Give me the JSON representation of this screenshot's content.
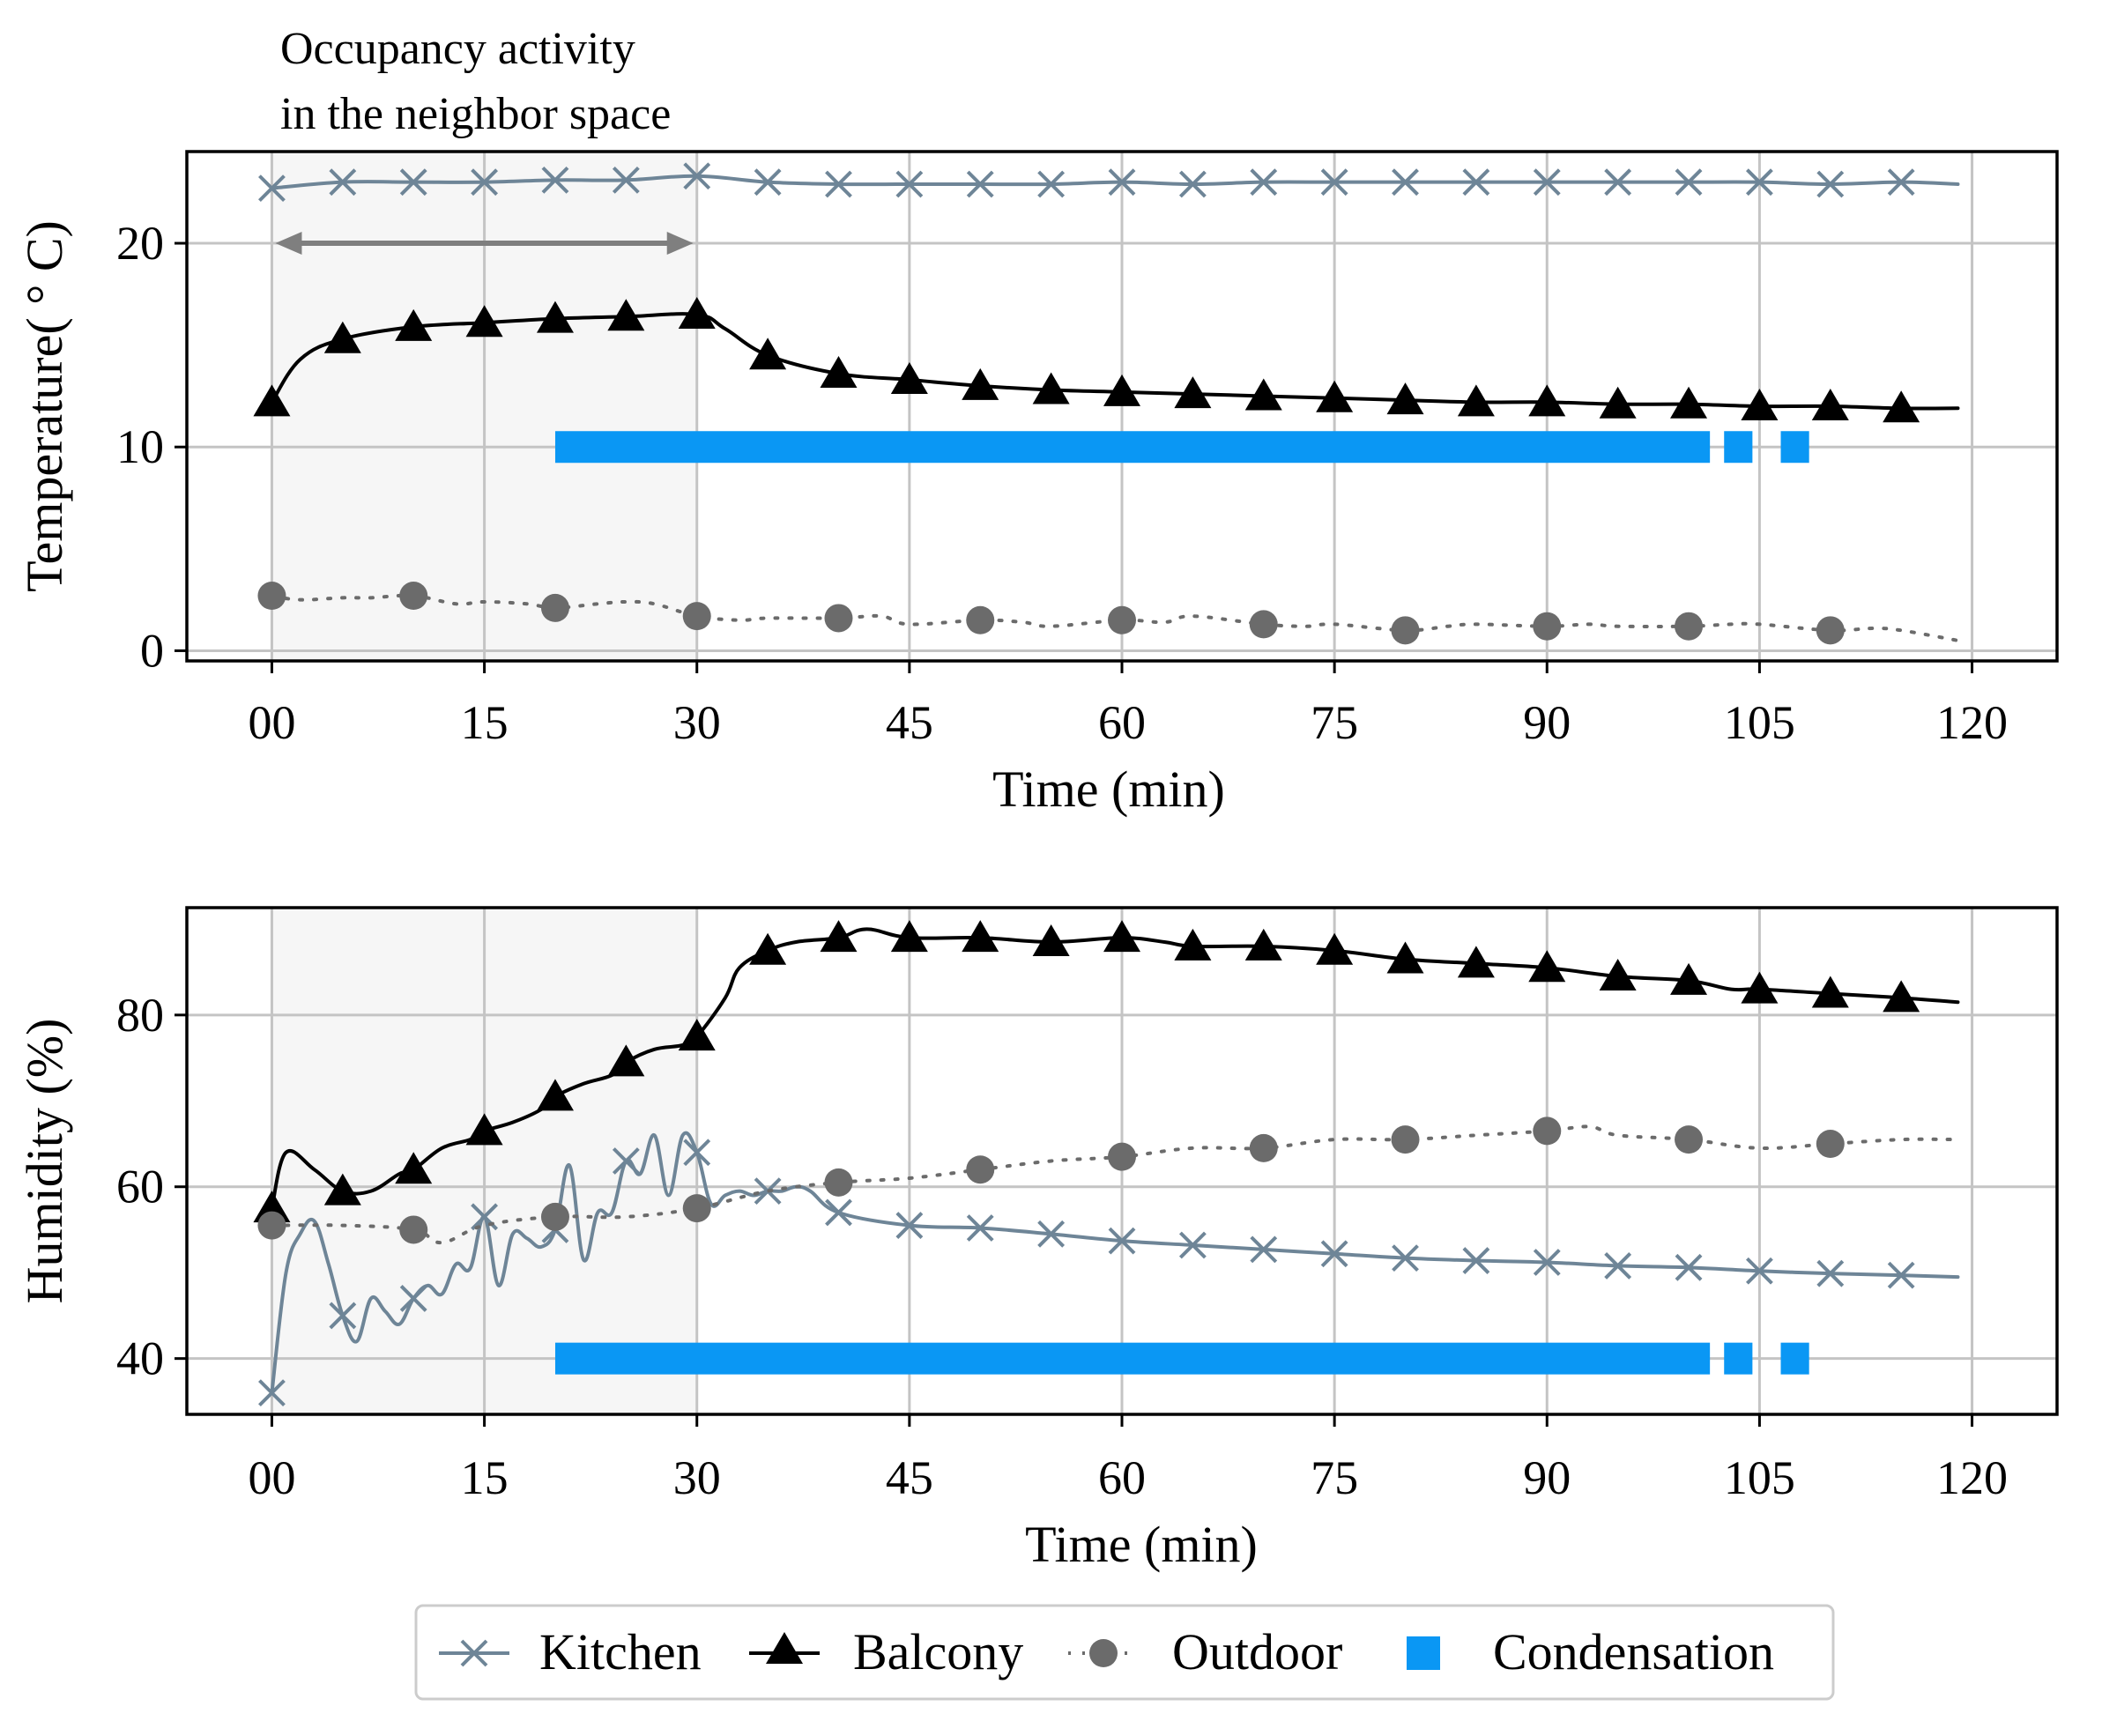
{
  "annotation": {
    "line1": "Occupancy activity",
    "line2": "in the neighbor space"
  },
  "legend": {
    "kitchen": "Kitchen",
    "balcony": "Balcony",
    "outdoor": "Outdoor",
    "condensation": "Condensation"
  },
  "colors": {
    "kitchen": "#6e8597",
    "balcony": "#000000",
    "outdoor": "#6b6b6b",
    "condensation": "#0a97f4",
    "occupancy_shade": "#f6f6f6",
    "grid": "#c4c4c4",
    "arrow": "#7f7f7f"
  },
  "chart_data": [
    {
      "type": "line",
      "xlabel": "Time (min)",
      "ylabel": "Temperature( ° C)",
      "xlim": [
        -6,
        126
      ],
      "ylim": [
        -0.5,
        24.5
      ],
      "xticks": [
        0,
        15,
        30,
        45,
        60,
        75,
        90,
        105,
        120
      ],
      "xtick_labels": [
        "00",
        "15",
        "30",
        "45",
        "60",
        "75",
        "90",
        "105",
        "120"
      ],
      "yticks": [
        0,
        10,
        20
      ],
      "ytick_labels": [
        "0",
        "10",
        "20"
      ],
      "grid": true,
      "occupancy_period": [
        0,
        30
      ],
      "condensation": {
        "y": 10,
        "segments": [
          [
            20,
            101.5
          ],
          [
            102.5,
            104.5
          ],
          [
            106.5,
            108.5
          ]
        ]
      },
      "series": [
        {
          "name": "Kitchen",
          "marker": "x",
          "x": [
            0,
            5,
            10,
            15,
            20,
            25,
            30,
            35,
            40,
            45,
            50,
            55,
            60,
            65,
            70,
            75,
            80,
            85,
            90,
            95,
            100,
            105,
            110,
            115,
            119
          ],
          "y": [
            22.7,
            23.0,
            23.0,
            23.0,
            23.1,
            23.1,
            23.3,
            23.0,
            22.9,
            22.9,
            22.9,
            22.9,
            23.0,
            22.9,
            23.0,
            23.0,
            23.0,
            23.0,
            23.0,
            23.0,
            23.0,
            23.0,
            22.9,
            23.0,
            22.9
          ]
        },
        {
          "name": "Balcony",
          "marker": "^",
          "x": [
            0,
            2,
            5,
            10,
            15,
            20,
            25,
            30,
            32,
            35,
            40,
            45,
            50,
            55,
            60,
            65,
            70,
            75,
            80,
            85,
            90,
            95,
            100,
            105,
            110,
            115,
            119
          ],
          "y": [
            12.2,
            14.3,
            15.3,
            15.9,
            16.1,
            16.3,
            16.4,
            16.5,
            15.8,
            14.5,
            13.6,
            13.3,
            13.0,
            12.8,
            12.7,
            12.6,
            12.5,
            12.4,
            12.3,
            12.2,
            12.2,
            12.1,
            12.1,
            12.0,
            12.0,
            11.9,
            11.9
          ]
        },
        {
          "name": "Outdoor",
          "marker": "o",
          "x": [
            0,
            2,
            5,
            7,
            10,
            13,
            15,
            18,
            20,
            23,
            25,
            27,
            30,
            33,
            35,
            40,
            43,
            45,
            50,
            53,
            55,
            60,
            63,
            65,
            70,
            73,
            75,
            80,
            83,
            85,
            90,
            93,
            95,
            100,
            103,
            105,
            110,
            113,
            115,
            119
          ],
          "y": [
            2.7,
            2.5,
            2.6,
            2.6,
            2.7,
            2.3,
            2.4,
            2.3,
            2.1,
            2.3,
            2.4,
            2.3,
            1.7,
            1.5,
            1.6,
            1.6,
            1.7,
            1.3,
            1.5,
            1.4,
            1.2,
            1.5,
            1.4,
            1.7,
            1.3,
            1.2,
            1.3,
            1.0,
            1.2,
            1.3,
            1.2,
            1.3,
            1.2,
            1.2,
            1.3,
            1.3,
            1.0,
            1.1,
            1.0,
            0.5
          ]
        }
      ]
    },
    {
      "type": "line",
      "xlabel": "Time (min)",
      "ylabel": "Humidity (%)",
      "xlim": [
        -6,
        126
      ],
      "ylim": [
        33.5,
        92.5
      ],
      "xticks": [
        0,
        15,
        30,
        45,
        60,
        75,
        90,
        105,
        120
      ],
      "xtick_labels": [
        "00",
        "15",
        "30",
        "45",
        "60",
        "75",
        "90",
        "105",
        "120"
      ],
      "yticks": [
        40,
        60,
        80
      ],
      "ytick_labels": [
        "40",
        "60",
        "80"
      ],
      "grid": true,
      "occupancy_period": [
        0,
        30
      ],
      "condensation": {
        "y": 40,
        "segments": [
          [
            20,
            101.5
          ],
          [
            102.5,
            104.5
          ],
          [
            106.5,
            108.5
          ]
        ]
      },
      "series": [
        {
          "name": "Kitchen",
          "marker": "x",
          "x": [
            0,
            1,
            2,
            3,
            4,
            5,
            6,
            7,
            8,
            9,
            10,
            11,
            12,
            13,
            14,
            15,
            16,
            17,
            18,
            19,
            20,
            21,
            22,
            23,
            24,
            25,
            26,
            27,
            28,
            29,
            30,
            31,
            32,
            33,
            34,
            35,
            36,
            37,
            38,
            40,
            45,
            50,
            55,
            60,
            65,
            70,
            75,
            80,
            85,
            90,
            95,
            100,
            105,
            110,
            115,
            119
          ],
          "y": [
            36,
            50,
            54.5,
            56,
            51,
            45,
            42,
            47,
            45.5,
            44,
            47,
            48.5,
            47.5,
            51,
            50.5,
            56.5,
            48.5,
            54.5,
            54,
            53,
            55,
            62.5,
            51.5,
            57,
            57,
            63,
            61.5,
            66,
            59,
            66,
            64,
            58,
            59,
            59.5,
            59,
            59.5,
            59.5,
            60,
            59.5,
            57,
            55.5,
            55.2,
            54.5,
            53.7,
            53.2,
            52.7,
            52.2,
            51.7,
            51.4,
            51.2,
            50.8,
            50.6,
            50.2,
            49.9,
            49.7,
            49.5
          ]
        },
        {
          "name": "Balcony",
          "marker": "^",
          "x": [
            0,
            1,
            3,
            5,
            7,
            9,
            10,
            12,
            14,
            15,
            17,
            19,
            20,
            22,
            24,
            25,
            27,
            29,
            30,
            32,
            33,
            35,
            37,
            40,
            42,
            45,
            50,
            55,
            60,
            63,
            65,
            70,
            75,
            80,
            85,
            90,
            95,
            100,
            103,
            105,
            110,
            115,
            119
          ],
          "y": [
            57.5,
            64,
            62,
            59.5,
            59.5,
            61.5,
            62,
            64.5,
            65.5,
            66.5,
            67.5,
            69,
            70.5,
            72,
            73,
            74.5,
            76,
            76.5,
            77.5,
            82,
            85.5,
            87.5,
            88.5,
            89,
            90,
            89,
            89,
            88.5,
            89,
            88.5,
            88,
            88,
            87.5,
            86.5,
            86,
            85.5,
            84.5,
            84,
            83,
            83,
            82.5,
            82,
            81.5
          ]
        },
        {
          "name": "Outdoor",
          "marker": "o",
          "x": [
            0,
            5,
            10,
            12,
            15,
            20,
            25,
            30,
            35,
            40,
            45,
            50,
            55,
            60,
            65,
            70,
            75,
            80,
            85,
            90,
            93,
            95,
            100,
            105,
            110,
            115,
            119
          ],
          "y": [
            55.5,
            55.5,
            55,
            53.5,
            55.5,
            56.5,
            56.5,
            57.5,
            59.5,
            60.5,
            61,
            62,
            63,
            63.5,
            64.5,
            64.5,
            65.5,
            65.5,
            66,
            66.5,
            67,
            66,
            65.5,
            64.5,
            65,
            65.5,
            65.5
          ]
        }
      ]
    }
  ]
}
